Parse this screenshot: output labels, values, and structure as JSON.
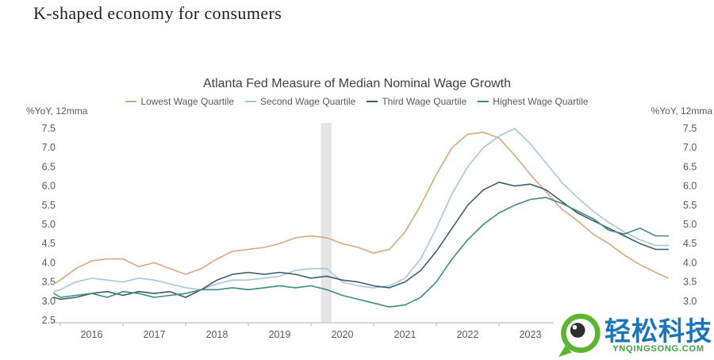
{
  "page": {
    "heading": "K-shaped economy for consumers"
  },
  "watermark": {
    "brand": "轻松科技",
    "domain": "YNQINGSONG.COM",
    "brand_color": "#1b75bb",
    "domain_color": "#3fa23f",
    "logo_ring_color": "#5cb531",
    "logo_pupil_color": "#2e2e2e"
  },
  "chart_data": {
    "type": "line",
    "title": "Atlanta Fed Measure of Median Nominal Wage Growth",
    "ylabel_left": "%YoY, 12mma",
    "ylabel_right": "%YoY, 12mma",
    "ylim": [
      2.5,
      7.5
    ],
    "ytick_step": 0.5,
    "yticks": [
      2.5,
      3.0,
      3.5,
      4.0,
      4.5,
      5.0,
      5.5,
      6.0,
      6.5,
      7.0,
      7.5
    ],
    "xlim": [
      2015.85,
      2025.75
    ],
    "year_labels": [
      "2016",
      "2017",
      "2018",
      "2019",
      "2020",
      "2021",
      "2022",
      "2023"
    ],
    "tick_years": [
      2016,
      2017,
      2018,
      2019,
      2020,
      2021,
      2022,
      2023,
      2024,
      2025
    ],
    "grid": false,
    "legend_position": "top",
    "axis_color": "#c8c8c8",
    "tick_text_color": "#595959",
    "recession_band": {
      "from": 2020.16,
      "to": 2020.33,
      "color": "#dcdcdc"
    },
    "x": [
      2015.9,
      2016.0,
      2016.25,
      2016.5,
      2016.75,
      2017.0,
      2017.25,
      2017.5,
      2017.75,
      2018.0,
      2018.25,
      2018.5,
      2018.75,
      2019.0,
      2019.25,
      2019.5,
      2019.75,
      2020.0,
      2020.25,
      2020.5,
      2020.75,
      2021.0,
      2021.25,
      2021.5,
      2021.75,
      2022.0,
      2022.25,
      2022.5,
      2022.75,
      2023.0,
      2023.25,
      2023.5,
      2023.75,
      2024.0,
      2024.25,
      2024.5,
      2024.75,
      2025.0,
      2025.25,
      2025.5,
      2025.7
    ],
    "series": [
      {
        "name": "Lowest Wage Quartile",
        "color": "#d8a87e",
        "values": [
          3.45,
          3.55,
          3.85,
          4.05,
          4.1,
          4.1,
          3.9,
          4.0,
          3.85,
          3.7,
          3.85,
          4.1,
          4.3,
          4.35,
          4.4,
          4.5,
          4.65,
          4.7,
          4.65,
          4.5,
          4.4,
          4.25,
          4.35,
          4.8,
          5.5,
          6.3,
          7.0,
          7.35,
          7.4,
          7.25,
          6.8,
          6.3,
          5.85,
          5.4,
          5.1,
          4.75,
          4.5,
          4.2,
          3.95,
          3.75,
          3.6
        ]
      },
      {
        "name": "Second Wage Quartile",
        "color": "#a5c8d8",
        "values": [
          3.25,
          3.3,
          3.5,
          3.6,
          3.55,
          3.5,
          3.6,
          3.55,
          3.45,
          3.35,
          3.3,
          3.45,
          3.55,
          3.55,
          3.6,
          3.65,
          3.8,
          3.85,
          3.85,
          3.5,
          3.4,
          3.35,
          3.4,
          3.6,
          4.1,
          4.9,
          5.8,
          6.5,
          7.0,
          7.3,
          7.5,
          7.1,
          6.6,
          6.1,
          5.7,
          5.35,
          5.05,
          4.8,
          4.6,
          4.45,
          4.45
        ]
      },
      {
        "name": "Third Wage Quartile",
        "color": "#3f5c6d",
        "values": [
          3.1,
          3.05,
          3.1,
          3.2,
          3.25,
          3.15,
          3.25,
          3.2,
          3.25,
          3.1,
          3.3,
          3.55,
          3.7,
          3.75,
          3.7,
          3.75,
          3.7,
          3.6,
          3.65,
          3.55,
          3.5,
          3.4,
          3.35,
          3.5,
          3.8,
          4.3,
          4.9,
          5.5,
          5.9,
          6.1,
          6.0,
          6.05,
          5.9,
          5.6,
          5.3,
          5.1,
          4.9,
          4.7,
          4.5,
          4.35,
          4.35
        ]
      },
      {
        "name": "Highest Wage Quartile",
        "color": "#3d8c7c",
        "values": [
          3.2,
          3.1,
          3.15,
          3.2,
          3.1,
          3.25,
          3.2,
          3.1,
          3.15,
          3.2,
          3.3,
          3.3,
          3.35,
          3.3,
          3.35,
          3.4,
          3.35,
          3.4,
          3.3,
          3.15,
          3.05,
          2.95,
          2.85,
          2.9,
          3.1,
          3.5,
          4.1,
          4.6,
          5.0,
          5.3,
          5.5,
          5.65,
          5.7,
          5.55,
          5.35,
          5.15,
          4.85,
          4.75,
          4.9,
          4.7,
          4.7
        ]
      }
    ]
  }
}
